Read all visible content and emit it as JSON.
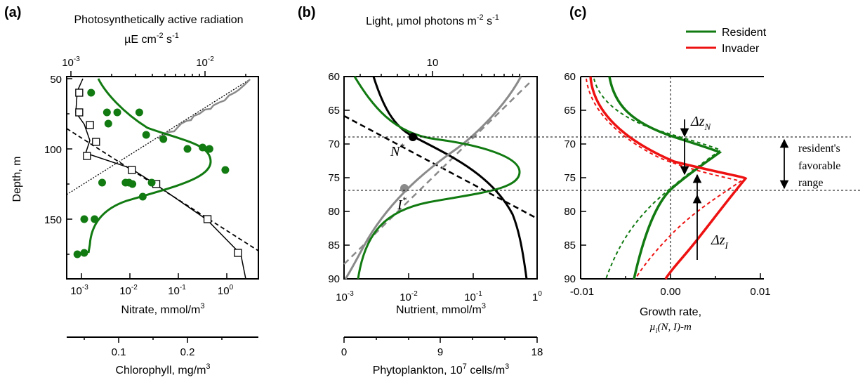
{
  "figure": {
    "panel_labels": [
      "(a)",
      "(b)",
      "(c)"
    ]
  },
  "panel_a": {
    "top_axis_label_line1": "Photosynthetically active radiation",
    "top_axis_label_line2_prefix": "µE cm",
    "top_axis_label_line2_exp1": "-2",
    "top_axis_label_line2_mid": " s",
    "top_axis_label_line2_exp2": "-1",
    "top_ticks": [
      {
        "base": "10",
        "exp": "-3"
      },
      {
        "base": "10",
        "exp": "-2"
      }
    ],
    "y_label": "Depth, m",
    "y_ticks": [
      "50",
      "100",
      "150"
    ],
    "x_label": "Nitrate, mmol/m",
    "x_label_exp": "3",
    "x_ticks": [
      {
        "base": "10",
        "exp": "-3"
      },
      {
        "base": "10",
        "exp": "-2"
      },
      {
        "base": "10",
        "exp": "-1"
      },
      {
        "base": "10",
        "exp": "0"
      }
    ],
    "chl_label": "Chlorophyll, mg/m",
    "chl_label_exp": "3",
    "chl_ticks": [
      "0.1",
      "0.2"
    ]
  },
  "panel_b": {
    "top_axis_label": "Light, ",
    "top_axis_label_mu": "µmol photons m",
    "top_axis_label_exp1": "-2",
    "top_axis_label_s": " s",
    "top_axis_label_exp2": "-1",
    "top_ticks": [
      "10"
    ],
    "y_ticks": [
      "60",
      "65",
      "70",
      "75",
      "80",
      "85",
      "90"
    ],
    "x_label": "Nutrient, mmol/m",
    "x_label_exp": "3",
    "x_ticks": [
      {
        "base": "10",
        "exp": "-3"
      },
      {
        "base": "10",
        "exp": "-2"
      },
      {
        "base": "10",
        "exp": "-1"
      },
      {
        "base": "1",
        "exp": "0"
      }
    ],
    "phyto_label": "Phytoplankton, 10",
    "phyto_label_exp": "7",
    "phyto_label_tail": " cells/m",
    "phyto_label_exp2": "3",
    "phyto_ticks": [
      "0",
      "9",
      "18"
    ],
    "n_star": "N",
    "i_star": "I",
    "star": "*"
  },
  "panel_c": {
    "legend_resident": "Resident",
    "legend_invader": "Invader",
    "y_ticks": [
      "60",
      "65",
      "70",
      "75",
      "80",
      "85",
      "90"
    ],
    "x_ticks": [
      "-0.01",
      "0.00",
      "0.01"
    ],
    "x_label_line1": "Growth rate,",
    "x_label_line2_mu": "µ",
    "x_label_line2_sub": "i",
    "x_label_line2_rest": "(N, I)-m",
    "dz_n": "Δz",
    "dz_n_sub": "N",
    "dz_i": "Δz",
    "dz_i_sub": "I",
    "favorable_line1": "resident's",
    "favorable_line2": "favorable",
    "favorable_line3": "range"
  },
  "colors": {
    "green": "#117a11",
    "red": "#ee1111",
    "gray": "#8a8a8a",
    "black": "#000000"
  },
  "chart_data": [
    {
      "type": "scatter",
      "panel": "a",
      "ylabel": "Depth, m",
      "xlabel": "Nitrate, mmol/m3",
      "ylim": [
        50,
        185
      ],
      "x_log": true,
      "xlim": [
        0.0006,
        4
      ],
      "series": [
        {
          "name": "Nitrate (observed)",
          "x": [
            0.0009,
            0.0009,
            0.0015,
            0.002,
            0.0013,
            0.011,
            0.035,
            0.4,
            1.7
          ],
          "y": [
            60,
            74,
            83,
            95,
            105,
            115,
            125,
            150,
            174
          ]
        },
        {
          "name": "Chlorophyll (observed, mg/m3)",
          "x": [
            0.06,
            0.083,
            0.098,
            0.085,
            0.13,
            0.14,
            0.165,
            0.2,
            0.222,
            0.232,
            0.255,
            0.076,
            0.115,
            0.11,
            0.148,
            0.135,
            0.12,
            0.065,
            0.05,
            0.05,
            0.04
          ],
          "y": [
            60,
            74,
            74,
            82,
            74,
            90,
            93,
            100,
            99,
            100,
            115,
            124,
            124,
            124,
            124,
            134,
            125,
            150,
            150,
            174,
            175
          ]
        }
      ]
    },
    {
      "type": "line",
      "panel": "b",
      "ylabel": "Depth, m",
      "xlabel": "Nutrient, mmol/m3",
      "ylim": [
        60,
        90
      ],
      "x_log": true,
      "xlim": [
        0.001,
        1
      ],
      "annotations": [
        {
          "label": "N*",
          "x": 0.012,
          "y": 69
        },
        {
          "label": "I*",
          "x": 0.01,
          "y": 77
        }
      ],
      "series": [
        {
          "name": "Nutrient",
          "x": [
            0.0032,
            0.006,
            0.012,
            0.03,
            0.08,
            0.2,
            0.45,
            0.7
          ],
          "y": [
            60,
            65,
            69,
            72,
            75,
            79,
            84,
            90
          ]
        },
        {
          "name": "Light",
          "x": [
            0.7,
            0.3,
            0.1,
            0.04,
            0.01,
            0.004,
            0.0012
          ],
          "y": [
            60,
            64,
            69,
            72,
            77,
            82,
            90
          ]
        },
        {
          "name": "Phytoplankton",
          "x": [
            0.0025,
            0.01,
            0.07,
            0.5,
            0.7,
            0.35,
            0.04,
            0.006,
            0.002
          ],
          "y": [
            60,
            64,
            68,
            71,
            73,
            75,
            78,
            82,
            90
          ]
        }
      ]
    },
    {
      "type": "line",
      "panel": "c",
      "xlabel": "Growth rate, µi(N, I)-m",
      "ylim": [
        60,
        90
      ],
      "xlim": [
        -0.01,
        0.0125
      ],
      "series": [
        {
          "name": "Resident",
          "x": [
            -0.0063,
            -0.0045,
            -0.001,
            0.004,
            0.0072,
            0.002,
            0.0,
            -0.0022,
            -0.005
          ],
          "y": [
            60,
            63,
            66,
            69,
            71.2,
            75,
            77,
            82,
            90
          ]
        },
        {
          "name": "Invader",
          "x": [
            -0.0079,
            -0.007,
            -0.004,
            -0.001,
            0.004,
            0.0113,
            0.006,
            0.002,
            -0.0005
          ],
          "y": [
            60,
            63,
            67,
            70,
            72.5,
            74.8,
            80,
            85,
            90
          ]
        }
      ]
    }
  ]
}
